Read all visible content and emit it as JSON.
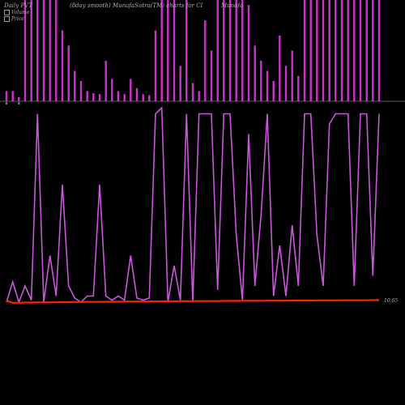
{
  "header": {
    "left": "Daily PVT",
    "middle": "(8day smooth) MunafaSutra(TM) charts for CI",
    "right": "Munafa"
  },
  "legend": [
    {
      "label": "Volume",
      "color": "#ffffff"
    },
    {
      "label": "Price",
      "color": "#ff9900"
    }
  ],
  "price_label": "10.65",
  "colors": {
    "background": "#000000",
    "volume": "#cc33cc",
    "pvt": "#cc55dd",
    "price": "#ff2200",
    "zero_line": "#bbbbbb",
    "neg_volume": "#33aa33"
  },
  "chart_data": [
    {
      "type": "bar",
      "title": "Volume",
      "x": [
        1,
        2,
        3,
        4,
        5,
        6,
        7,
        8,
        9,
        10,
        11,
        12,
        13,
        14,
        15,
        16,
        17,
        18,
        19,
        20,
        21,
        22,
        23,
        24,
        25,
        26,
        27,
        28,
        29,
        30,
        31,
        32,
        33,
        34,
        35,
        36,
        37,
        38,
        39,
        40,
        41,
        42,
        43,
        44,
        45,
        46,
        47,
        48,
        49,
        50,
        51,
        52,
        53,
        54,
        55,
        56,
        57,
        58,
        59,
        60,
        61
      ],
      "values": [
        0.1,
        0.1,
        0.04,
        1,
        1,
        1,
        1,
        1,
        1,
        0.7,
        0.55,
        0.3,
        0.2,
        0.1,
        0.08,
        0.07,
        0.4,
        0.22,
        0.1,
        0.07,
        0.22,
        0.13,
        0.07,
        0.06,
        0.7,
        1,
        1,
        1,
        0.35,
        1,
        0.18,
        0.1,
        0.8,
        0.5,
        1,
        1,
        1,
        1,
        1,
        0.95,
        0.55,
        0.4,
        0.3,
        0.2,
        0.65,
        0.35,
        0.5,
        0.25,
        1,
        1,
        1,
        1,
        1,
        1,
        1,
        1,
        1,
        1,
        1,
        1,
        1
      ],
      "negative_x": [
        1,
        3
      ],
      "ylim": [
        0,
        1
      ]
    },
    {
      "type": "line",
      "title": "PVT",
      "x": [
        1,
        2,
        3,
        4,
        5,
        6,
        7,
        8,
        9,
        10,
        11,
        12,
        13,
        14,
        15,
        16,
        17,
        18,
        19,
        20,
        21,
        22,
        23,
        24,
        25,
        26,
        27,
        28,
        29,
        30,
        31,
        32,
        33,
        34,
        35,
        36,
        37,
        38,
        39,
        40,
        41,
        42,
        43,
        44,
        45,
        46,
        47,
        48,
        49,
        50,
        51,
        52,
        53,
        54,
        55,
        56,
        57,
        58,
        59,
        60,
        61
      ],
      "values": [
        0.02,
        0.12,
        0.02,
        0.1,
        0.03,
        0.95,
        0.02,
        0.25,
        0.05,
        0.6,
        0.1,
        0.04,
        0.02,
        0.05,
        0.05,
        0.6,
        0.05,
        0.03,
        0.05,
        0.03,
        0.25,
        0.04,
        0.03,
        0.04,
        0.95,
        0.98,
        0.02,
        0.2,
        0.03,
        0.95,
        0.02,
        0.95,
        0.95,
        0.95,
        0.08,
        0.95,
        0.95,
        0.35,
        0.03,
        0.85,
        0.1,
        0.45,
        0.95,
        0.05,
        0.3,
        0.05,
        0.4,
        0.1,
        0.95,
        0.95,
        0.35,
        0.1,
        0.9,
        0.95,
        0.95,
        0.95,
        0.1,
        0.95,
        0.95,
        0.15,
        0.95
      ],
      "ylim": [
        0,
        1
      ]
    },
    {
      "type": "line",
      "title": "Price",
      "x": [
        1,
        2,
        3,
        4,
        5,
        6,
        7,
        8,
        9,
        10,
        11,
        12,
        13,
        14,
        15,
        16,
        17,
        18,
        19,
        20,
        21,
        22,
        23,
        24,
        25,
        26,
        27,
        28,
        29,
        30,
        31,
        32,
        33,
        34,
        35,
        36,
        37,
        38,
        39,
        40,
        41,
        42,
        43,
        44,
        45,
        46,
        47,
        48,
        49,
        50,
        51,
        52,
        53,
        54,
        55,
        56,
        57,
        58,
        59,
        60,
        61
      ],
      "values": [
        10.6,
        10.45,
        10.45,
        10.47,
        10.47,
        10.48,
        10.48,
        10.49,
        10.49,
        10.5,
        10.5,
        10.51,
        10.51,
        10.52,
        10.52,
        10.52,
        10.53,
        10.53,
        10.53,
        10.54,
        10.54,
        10.54,
        10.55,
        10.55,
        10.55,
        10.56,
        10.56,
        10.56,
        10.57,
        10.57,
        10.57,
        10.58,
        10.58,
        10.58,
        10.58,
        10.59,
        10.59,
        10.59,
        10.6,
        10.6,
        10.6,
        10.6,
        10.61,
        10.61,
        10.61,
        10.61,
        10.62,
        10.62,
        10.62,
        10.62,
        10.63,
        10.63,
        10.63,
        10.63,
        10.64,
        10.64,
        10.64,
        10.64,
        10.64,
        10.65,
        10.65
      ],
      "ylim": [
        10.2,
        10.8
      ]
    }
  ]
}
